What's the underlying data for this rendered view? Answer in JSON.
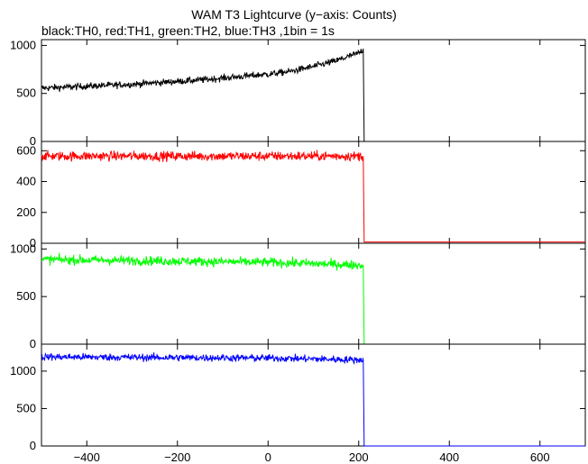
{
  "title": "WAM T3 Lightcurve (y−axis: Counts)",
  "subtitle": "black:TH0, red:TH1, green:TH2, blue:TH3 ,1bin = 1s",
  "chart_data": {
    "type": "line",
    "title": "WAM T3 Lightcurve (y−axis: Counts)",
    "xlabel": "",
    "ylabel": "",
    "xlim": [
      -500,
      700
    ],
    "x_ticks": [
      -400,
      -200,
      0,
      200,
      400,
      600
    ],
    "x_tick_labels": [
      "−400",
      "−200",
      "0",
      "200",
      "400",
      "600"
    ],
    "grid": false,
    "bin_seconds": 1,
    "panels": [
      {
        "name": "TH0",
        "color": "#000000",
        "ylim": [
          0,
          1060
        ],
        "y_ticks": [
          0,
          500,
          1000
        ],
        "series": {
          "x": [
            -500,
            -450,
            -400,
            -350,
            -300,
            -250,
            -200,
            -150,
            -100,
            -50,
            0,
            50,
            100,
            150,
            200,
            210,
            212,
            700
          ],
          "y": [
            555,
            565,
            575,
            585,
            595,
            610,
            625,
            640,
            660,
            680,
            700,
            730,
            780,
            840,
            920,
            960,
            0,
            0
          ],
          "noise": 25
        }
      },
      {
        "name": "TH1",
        "color": "#ff0000",
        "ylim": [
          0,
          660
        ],
        "y_ticks": [
          0,
          200,
          400,
          600
        ],
        "series": {
          "x": [
            -500,
            210,
            212,
            700
          ],
          "y": [
            565,
            565,
            8,
            8
          ],
          "noise": 22
        }
      },
      {
        "name": "TH2",
        "color": "#00ff00",
        "ylim": [
          0,
          1060
        ],
        "y_ticks": [
          0,
          500,
          1000
        ],
        "series": {
          "x": [
            -500,
            0,
            210,
            212,
            700
          ],
          "y": [
            890,
            860,
            830,
            0,
            0
          ],
          "noise": 35
        }
      },
      {
        "name": "TH3",
        "color": "#0000ff",
        "ylim": [
          0,
          1360
        ],
        "y_ticks": [
          0,
          500,
          1000
        ],
        "series": {
          "x": [
            -500,
            0,
            210,
            212,
            700
          ],
          "y": [
            1190,
            1175,
            1150,
            0,
            0
          ],
          "noise": 35
        }
      }
    ]
  }
}
